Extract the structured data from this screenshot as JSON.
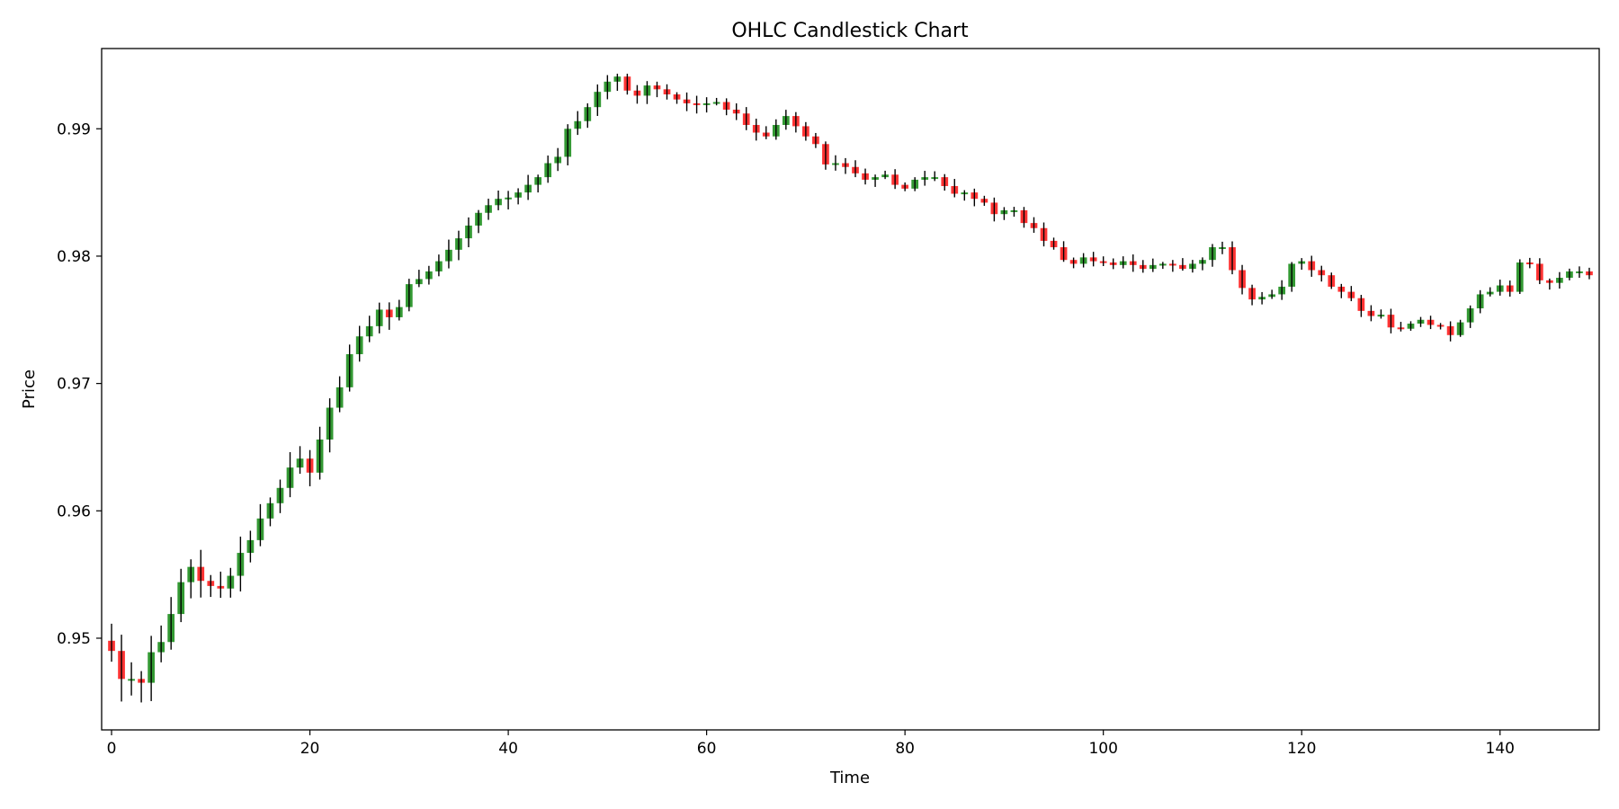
{
  "chart_data": {
    "type": "candlestick",
    "title": "OHLC Candlestick Chart",
    "xlabel": "Time",
    "ylabel": "Price",
    "xlim": [
      -1,
      150
    ],
    "ylim": [
      0.9428,
      0.9963
    ],
    "x_ticks": [
      0,
      20,
      40,
      60,
      80,
      100,
      120,
      140
    ],
    "y_ticks": [
      0.95,
      0.96,
      0.97,
      0.98,
      0.99
    ],
    "grid": false,
    "colors": {
      "up": "#008000",
      "down": "#ff0000",
      "wick": "#000000",
      "body_alpha": 0.8
    },
    "close_series": [
      0.949,
      0.9468,
      0.9468,
      0.9465,
      0.9489,
      0.9497,
      0.9519,
      0.9544,
      0.9556,
      0.9545,
      0.9541,
      0.9539,
      0.9549,
      0.9567,
      0.9577,
      0.9594,
      0.9606,
      0.9618,
      0.9634,
      0.9641,
      0.963,
      0.9656,
      0.9681,
      0.9697,
      0.9723,
      0.9737,
      0.9745,
      0.9758,
      0.9752,
      0.976,
      0.9778,
      0.9782,
      0.9788,
      0.9796,
      0.9805,
      0.9814,
      0.9824,
      0.9834,
      0.984,
      0.9845,
      0.9846,
      0.985,
      0.9856,
      0.9862,
      0.9873,
      0.9878,
      0.99,
      0.9906,
      0.9917,
      0.9929,
      0.9937,
      0.9941,
      0.993,
      0.9926,
      0.9934,
      0.9931,
      0.9927,
      0.9923,
      0.992,
      0.9919,
      0.992,
      0.9921,
      0.9915,
      0.9912,
      0.9903,
      0.9897,
      0.9894,
      0.9903,
      0.991,
      0.9902,
      0.9894,
      0.9888,
      0.9872,
      0.9873,
      0.987,
      0.9865,
      0.986,
      0.9862,
      0.9864,
      0.9856,
      0.9853,
      0.986,
      0.9862,
      0.9862,
      0.9855,
      0.9849,
      0.985,
      0.9845,
      0.9842,
      0.9833,
      0.9836,
      0.9836,
      0.9826,
      0.9822,
      0.9812,
      0.9807,
      0.9797,
      0.9794,
      0.9799,
      0.9796,
      0.9795,
      0.9793,
      0.9796,
      0.9793,
      0.979,
      0.9793,
      0.9794,
      0.9793,
      0.979,
      0.9794,
      0.9797,
      0.9807,
      0.9807,
      0.9789,
      0.9775,
      0.9766,
      0.9768,
      0.977,
      0.9776,
      0.9794,
      0.9796,
      0.9789,
      0.9785,
      0.9776,
      0.9772,
      0.9767,
      0.9757,
      0.9753,
      0.9754,
      0.9744,
      0.9743,
      0.9747,
      0.975,
      0.9746,
      0.9745,
      0.9738,
      0.9748,
      0.9759,
      0.977,
      0.9772,
      0.9777,
      0.9772,
      0.9795,
      0.9794,
      0.9781,
      0.9779,
      0.9783,
      0.9788,
      0.9788,
      0.9785
    ]
  }
}
